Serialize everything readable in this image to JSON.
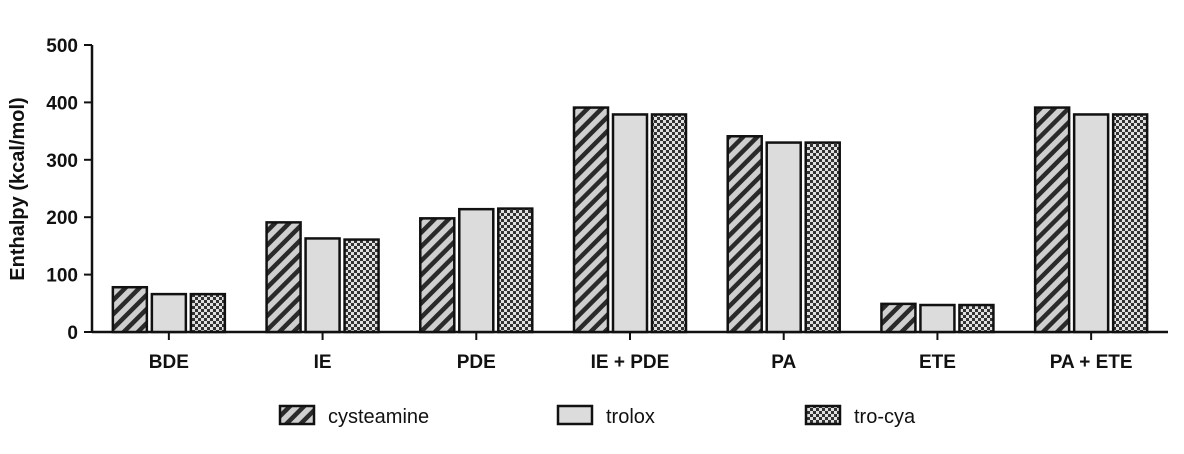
{
  "chart_data": {
    "type": "bar",
    "title": "",
    "xlabel": "",
    "ylabel": "Enthalpy (kcal/mol)",
    "ylim": [
      0,
      500
    ],
    "yticks": [
      0,
      100,
      200,
      300,
      400,
      500
    ],
    "categories": [
      "BDE",
      "IE",
      "PDE",
      "IE + PDE",
      "PA",
      "ETE",
      "PA + ETE"
    ],
    "series": [
      {
        "name": "cysteamine",
        "fill": "hatch-diagonal",
        "values": [
          78,
          191,
          198,
          391,
          341,
          49,
          391
        ]
      },
      {
        "name": "trolox",
        "fill": "light-gray",
        "values": [
          66,
          163,
          214,
          379,
          330,
          47,
          379
        ]
      },
      {
        "name": "tro-cya",
        "fill": "checkered",
        "values": [
          66,
          161,
          215,
          379,
          330,
          47,
          379
        ]
      }
    ],
    "legend_position": "bottom",
    "grid": false,
    "colors": {
      "axis": "#111111",
      "light_gray": "#dcdcdc",
      "hatch_bg": "#cfcfcf"
    }
  }
}
